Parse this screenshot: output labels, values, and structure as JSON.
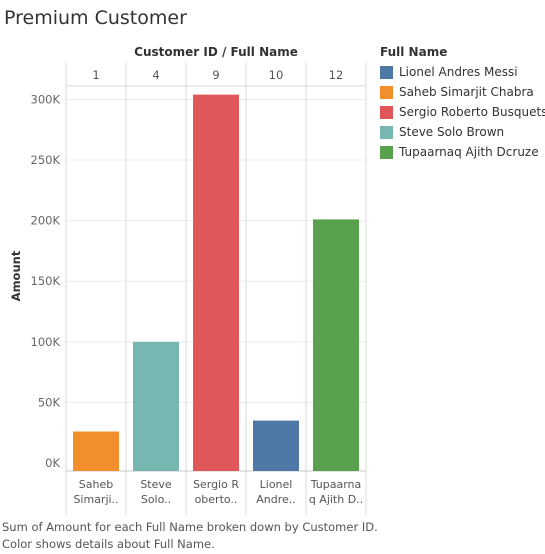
{
  "title": "Premium Customer",
  "chart_data": {
    "type": "bar",
    "column_header": "Customer ID  / Full Name",
    "ylabel": "Amount",
    "ylim": [
      0,
      320000
    ],
    "yticks": [
      0,
      50000,
      100000,
      150000,
      200000,
      250000,
      300000
    ],
    "ytick_labels": [
      "0K",
      "50K",
      "100K",
      "150K",
      "200K",
      "250K",
      "300K"
    ],
    "grid": true,
    "legend_title": "Full Name",
    "legend_position": "right",
    "columns": [
      {
        "customer_id": "1",
        "name_label": [
          "Saheb",
          "Simarji.."
        ],
        "value": 26000,
        "color": "#f28e2b",
        "full_name": "Saheb Simarjit Chabra"
      },
      {
        "customer_id": "4",
        "name_label": [
          "Steve",
          "Solo.."
        ],
        "value": 100000,
        "color": "#76b7b2",
        "full_name": "Steve Solo Brown"
      },
      {
        "customer_id": "9",
        "name_label": [
          "Sergio R",
          "oberto.."
        ],
        "value": 304000,
        "color": "#e15759",
        "full_name": "Sergio Roberto Busquets"
      },
      {
        "customer_id": "10",
        "name_label": [
          "Lionel",
          "Andre.."
        ],
        "value": 35000,
        "color": "#4e79a7",
        "full_name": "Lionel Andres Messi"
      },
      {
        "customer_id": "12",
        "name_label": [
          "Tupaarna",
          "q Ajith  D.."
        ],
        "value": 201000,
        "color": "#59a14f",
        "full_name": "Tupaarnaq Ajith  Dcruze"
      }
    ],
    "legend": [
      {
        "label": "Lionel Andres Messi",
        "color": "#4e79a7"
      },
      {
        "label": "Saheb Simarjit Chabra",
        "color": "#f28e2b"
      },
      {
        "label": "Sergio Roberto Busquets",
        "color": "#e15759"
      },
      {
        "label": "Steve Solo Brown",
        "color": "#76b7b2"
      },
      {
        "label": "Tupaarnaq Ajith  Dcruze",
        "color": "#59a14f"
      }
    ]
  },
  "caption": {
    "line1": "Sum of Amount for each Full Name broken down by Customer ID.",
    "line2": "Color shows details about Full Name."
  }
}
